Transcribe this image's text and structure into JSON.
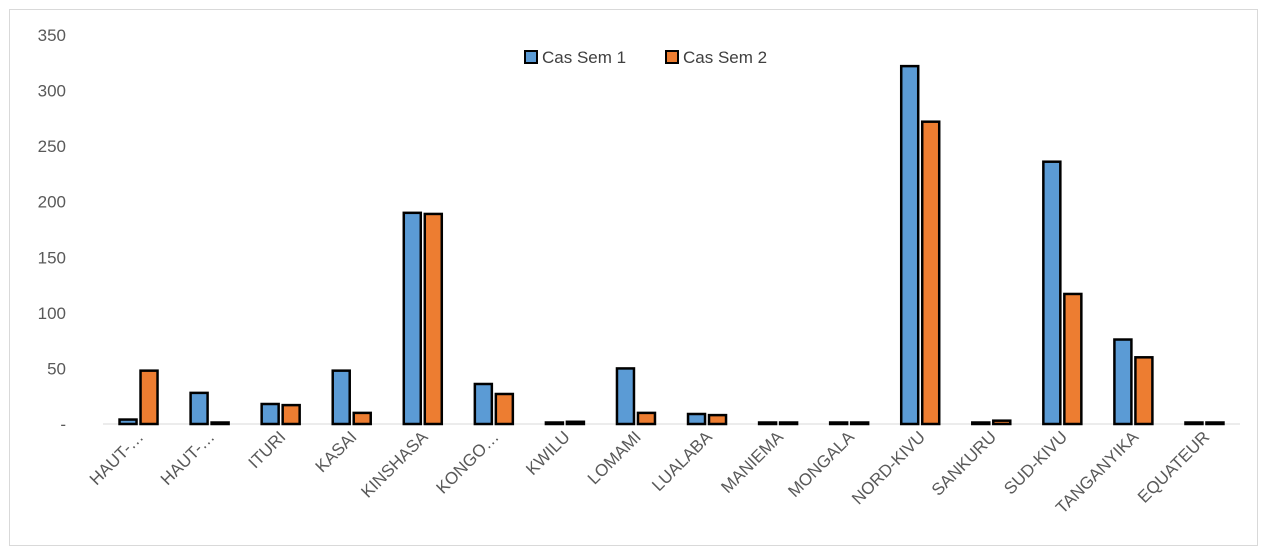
{
  "chart_data": {
    "type": "bar",
    "categories": [
      "HAUT-…",
      "HAUT-…",
      "ITURI",
      "KASAI",
      "KINSHASA",
      "KONGO…",
      "KWILU",
      "LOMAMI",
      "LUALABA",
      "MANIEMA",
      "MONGALA",
      "NORD-KIVU",
      "SANKURU",
      "SUD-KIVU",
      "TANGANYIKA",
      "EQUATEUR"
    ],
    "series": [
      {
        "name": "Cas Sem 1",
        "color": "#5b9bd5",
        "values": [
          4,
          28,
          18,
          48,
          190,
          36,
          0,
          50,
          9,
          1,
          0,
          322,
          1,
          236,
          76,
          0
        ]
      },
      {
        "name": "Cas Sem 2",
        "color": "#ed7d31",
        "values": [
          48,
          0,
          17,
          10,
          189,
          27,
          2,
          10,
          8,
          0,
          1,
          272,
          3,
          117,
          60,
          1
        ]
      }
    ],
    "y_ticks": [
      {
        "value": 0,
        "label": "-"
      },
      {
        "value": 50,
        "label": "50"
      },
      {
        "value": 100,
        "label": "100"
      },
      {
        "value": 150,
        "label": "150"
      },
      {
        "value": 200,
        "label": "200"
      },
      {
        "value": 250,
        "label": "250"
      },
      {
        "value": 300,
        "label": "300"
      },
      {
        "value": 350,
        "label": "350"
      }
    ],
    "ylim": [
      0,
      350
    ],
    "grid": false,
    "legend_position": "top-center",
    "bar_outline_color": "#000000",
    "axis_color": "#d9d9d9"
  }
}
